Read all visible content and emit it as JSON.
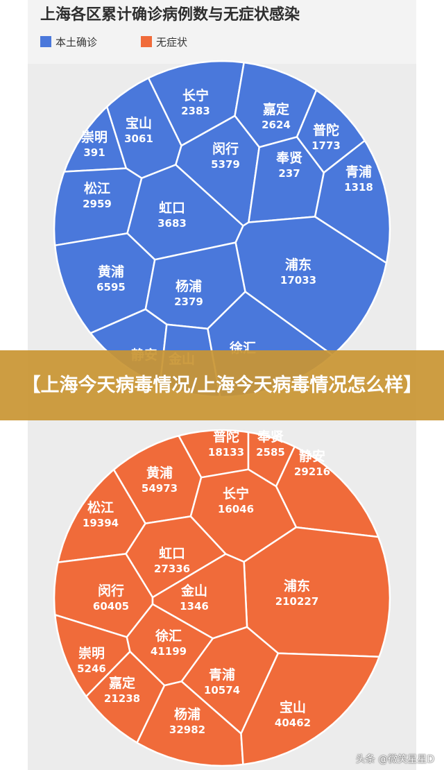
{
  "title": "上海各区累计确诊病例数与无症状感染",
  "legend": [
    {
      "label": "本土确诊",
      "color": "#4a78db"
    },
    {
      "label": "无症状",
      "color": "#f06b3a"
    }
  ],
  "banner": "【上海今天病毒情况/上海今天病毒情况怎么样】",
  "watermark": "头条 @微笑星星D",
  "chart_data": [
    {
      "type": "voronoi-treemap",
      "series": "本土确诊",
      "color": "#4a78db",
      "categories": [
        "长宁",
        "嘉定",
        "崇明",
        "宝山",
        "闵行",
        "奉贤",
        "普陀",
        "青浦",
        "松江",
        "虹口",
        "黄浦",
        "浦东",
        "杨浦",
        "静安",
        "金山",
        "徐汇"
      ],
      "values": [
        2383,
        2624,
        391,
        3061,
        5379,
        237,
        1773,
        1318,
        2959,
        3683,
        6595,
        17033,
        2379,
        null,
        null,
        null
      ],
      "display": [
        "2383",
        "2624",
        "391",
        "3061",
        "5379",
        "237",
        "1773",
        "1318",
        "2959",
        "3683",
        "6595",
        "17033",
        "2379",
        "",
        "",
        ""
      ]
    },
    {
      "type": "voronoi-treemap",
      "series": "无症状",
      "color": "#f06b3a",
      "categories": [
        "普陀",
        "奉贤",
        "静安",
        "黄浦",
        "长宁",
        "松江",
        "虹口",
        "浦东",
        "闵行",
        "金山",
        "崇明",
        "徐汇",
        "嘉定",
        "青浦",
        "杨浦",
        "宝山"
      ],
      "values": [
        18133,
        2585,
        29216,
        54973,
        16046,
        19394,
        27336,
        210227,
        60405,
        1346,
        5246,
        41199,
        21238,
        10574,
        32982,
        40462
      ],
      "display": [
        "18133",
        "2585",
        "29216",
        "54973",
        "16046",
        "19394",
        "27336",
        "210227",
        "60405",
        "1346",
        "5246",
        "41199",
        "21238",
        "10574",
        "32982",
        "40462"
      ]
    }
  ]
}
